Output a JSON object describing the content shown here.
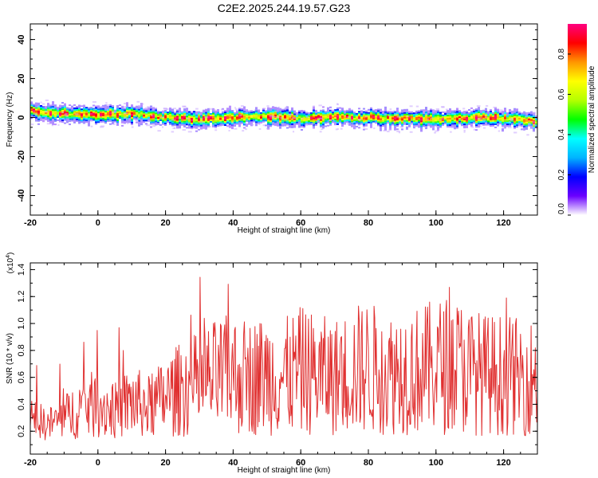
{
  "title": "C2E2.2025.244.19.57.G23",
  "colors": {
    "line": "#e03030",
    "colorbar": [
      "#ffffff",
      "#6a00ff",
      "#0000ff",
      "#00b4ff",
      "#00ffff",
      "#00ff00",
      "#b4ff00",
      "#ffff00",
      "#ff9600",
      "#ff0000",
      "#ff0080"
    ]
  },
  "chart_data": [
    {
      "type": "heatmap",
      "title": "",
      "xlabel": "Height of straight line (km)",
      "ylabel": "Frequency (Hz)",
      "xlim": [
        -20,
        130
      ],
      "ylim": [
        -50,
        48
      ],
      "x_ticks": [
        "-20",
        "0",
        "20",
        "40",
        "60",
        "80",
        "100",
        "120"
      ],
      "y_ticks": [
        "-40",
        "-20",
        "0",
        "20",
        "40"
      ],
      "ridge": {
        "x": [
          -20,
          -15,
          -10,
          -5,
          0,
          5,
          10,
          15,
          20,
          25,
          30,
          35,
          40,
          45,
          50,
          55,
          60,
          65,
          70,
          75,
          80,
          85,
          90,
          95,
          100,
          105,
          110,
          115,
          120,
          125,
          130
        ],
        "y": [
          3.5,
          2.5,
          2,
          1.5,
          1.5,
          1.5,
          2,
          1,
          0,
          -0.5,
          -1,
          -0.5,
          0,
          0.5,
          0.5,
          0,
          -0.5,
          0,
          0.5,
          0,
          0,
          -0.5,
          -0.5,
          -0.5,
          -1,
          -0.5,
          0,
          0,
          -0.5,
          -1,
          -2.5
        ]
      },
      "colorbar": {
        "label": "Normalized spectral amplitude",
        "range": [
          0,
          0.95
        ],
        "ticks": [
          "0.0",
          "0.2",
          "0.4",
          "0.6",
          "0.8"
        ]
      }
    },
    {
      "type": "line",
      "title": "",
      "xlabel": "Height of straight line (km)",
      "ylabel": "SNR (10 * v/v)",
      "y_multiplier": "(x10",
      "y_multiplier_exp": "4",
      "y_multiplier_close": ")",
      "xlim": [
        -20,
        130
      ],
      "ylim": [
        0.03,
        1.45
      ],
      "x_ticks": [
        "-20",
        "0",
        "20",
        "40",
        "60",
        "80",
        "100",
        "120"
      ],
      "y_ticks": [
        "0.2",
        "0.4",
        "0.6",
        "0.8",
        "1.0",
        "1.2",
        "1.4"
      ],
      "series": [
        {
          "x": [
            -20,
            -15,
            -10,
            -5,
            0,
            5,
            10,
            15,
            20,
            25,
            30,
            35,
            40,
            45,
            50,
            55,
            60,
            65,
            70,
            75,
            80,
            85,
            90,
            95,
            100,
            105,
            110,
            115,
            120,
            125,
            130
          ],
          "y": [
            0.3,
            0.25,
            0.3,
            0.38,
            0.4,
            0.35,
            0.42,
            0.38,
            0.45,
            0.52,
            0.55,
            0.6,
            0.62,
            0.6,
            0.62,
            0.6,
            0.65,
            0.62,
            0.6,
            0.65,
            0.68,
            0.62,
            0.66,
            0.65,
            0.68,
            0.7,
            0.65,
            0.62,
            0.62,
            0.6,
            0.6
          ]
        }
      ]
    }
  ]
}
